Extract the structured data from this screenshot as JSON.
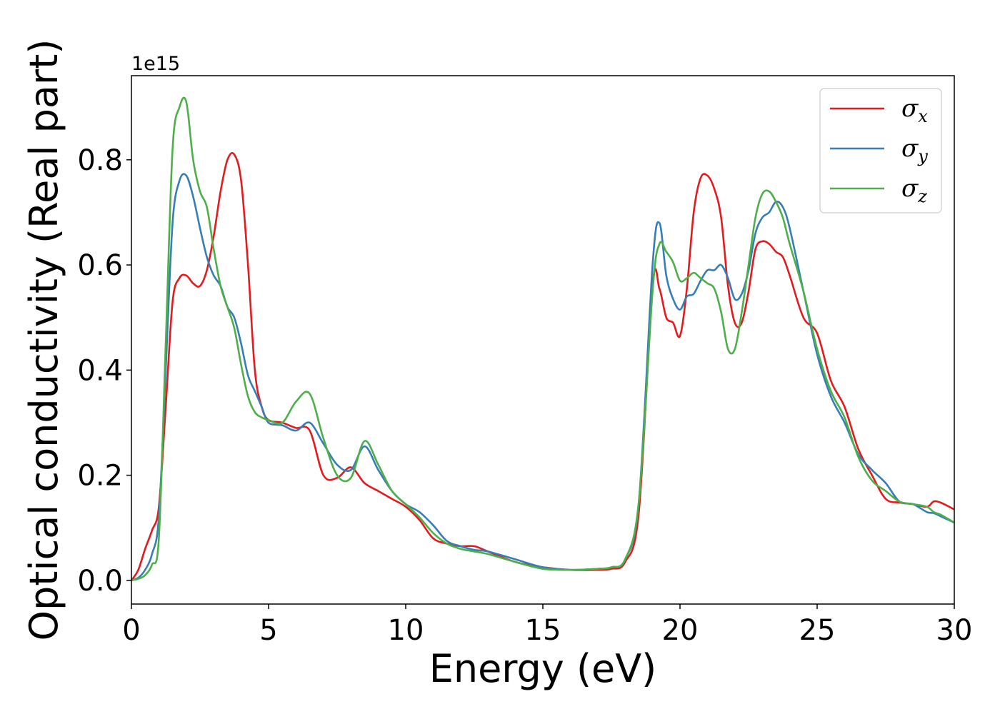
{
  "chart_data": {
    "type": "line",
    "title": "",
    "xlabel": "Energy (eV)",
    "ylabel": "Optical conductivity (Real part)",
    "y_offset_label": "1e15",
    "xlim": [
      0,
      30
    ],
    "ylim": [
      -0.045,
      0.96
    ],
    "x_ticks": [
      0,
      5,
      10,
      15,
      20,
      25,
      30
    ],
    "x_tick_labels": [
      "0",
      "5",
      "10",
      "15",
      "20",
      "25",
      "30"
    ],
    "y_ticks": [
      0.0,
      0.2,
      0.4,
      0.6,
      0.8
    ],
    "y_tick_labels": [
      "0.0",
      "0.2",
      "0.4",
      "0.6",
      "0.8"
    ],
    "grid": false,
    "legend_position": "top-right",
    "series": [
      {
        "name": "σx",
        "legend_symbol": "σ",
        "legend_subscript": "x",
        "color": "#e41a1c",
        "x": [
          0,
          0.25,
          0.5,
          0.75,
          1,
          1.25,
          1.5,
          1.75,
          2,
          2.25,
          2.5,
          2.75,
          3,
          3.25,
          3.5,
          3.75,
          4,
          4.25,
          4.5,
          4.75,
          5,
          5.5,
          6,
          6.5,
          7,
          7.5,
          8,
          8.5,
          9,
          9.5,
          10,
          10.5,
          11,
          11.5,
          12,
          12.5,
          13,
          14,
          15,
          16,
          17,
          17.5,
          18,
          18.5,
          19,
          19.25,
          19.5,
          19.75,
          20,
          20.25,
          20.5,
          20.75,
          21,
          21.25,
          21.5,
          21.75,
          22,
          22.25,
          22.5,
          22.75,
          23,
          23.25,
          23.5,
          23.75,
          24,
          24.5,
          25,
          25.5,
          26,
          26.5,
          27,
          27.5,
          28,
          28.5,
          29,
          29.25,
          29.5,
          30
        ],
        "y": [
          0,
          0.02,
          0.06,
          0.095,
          0.14,
          0.33,
          0.53,
          0.575,
          0.58,
          0.565,
          0.56,
          0.59,
          0.655,
          0.74,
          0.8,
          0.81,
          0.76,
          0.6,
          0.4,
          0.33,
          0.305,
          0.3,
          0.29,
          0.285,
          0.2,
          0.195,
          0.215,
          0.185,
          0.17,
          0.155,
          0.14,
          0.115,
          0.08,
          0.07,
          0.065,
          0.065,
          0.055,
          0.035,
          0.025,
          0.02,
          0.02,
          0.022,
          0.035,
          0.13,
          0.56,
          0.555,
          0.5,
          0.49,
          0.465,
          0.555,
          0.7,
          0.765,
          0.77,
          0.745,
          0.69,
          0.56,
          0.49,
          0.49,
          0.55,
          0.63,
          0.645,
          0.64,
          0.625,
          0.615,
          0.58,
          0.5,
          0.47,
          0.38,
          0.33,
          0.25,
          0.2,
          0.155,
          0.148,
          0.145,
          0.14,
          0.15,
          0.148,
          0.135
        ]
      },
      {
        "name": "σy",
        "legend_symbol": "σ",
        "legend_subscript": "y",
        "color": "#377eb8",
        "x": [
          0,
          0.25,
          0.5,
          0.75,
          1,
          1.25,
          1.5,
          1.75,
          2,
          2.25,
          2.5,
          2.75,
          3,
          3.25,
          3.5,
          3.75,
          4,
          4.25,
          4.5,
          4.75,
          5,
          5.5,
          6,
          6.5,
          7,
          7.5,
          8,
          8.5,
          9,
          9.5,
          10,
          10.5,
          11,
          11.5,
          12,
          12.5,
          13,
          14,
          15,
          16,
          17,
          17.5,
          18,
          18.5,
          19,
          19.25,
          19.5,
          19.75,
          20,
          20.25,
          20.5,
          20.75,
          21,
          21.25,
          21.5,
          21.75,
          22,
          22.25,
          22.5,
          22.75,
          23,
          23.25,
          23.5,
          23.75,
          24,
          24.5,
          25,
          25.5,
          26,
          26.5,
          27,
          27.5,
          28,
          28.5,
          29,
          29.25,
          29.5,
          30
        ],
        "y": [
          0,
          0.005,
          0.02,
          0.05,
          0.12,
          0.4,
          0.68,
          0.76,
          0.77,
          0.73,
          0.67,
          0.615,
          0.58,
          0.56,
          0.52,
          0.5,
          0.45,
          0.39,
          0.36,
          0.33,
          0.3,
          0.295,
          0.285,
          0.3,
          0.26,
          0.22,
          0.21,
          0.255,
          0.21,
          0.17,
          0.145,
          0.13,
          0.105,
          0.075,
          0.065,
          0.058,
          0.055,
          0.04,
          0.025,
          0.02,
          0.022,
          0.025,
          0.04,
          0.15,
          0.6,
          0.68,
          0.58,
          0.535,
          0.515,
          0.54,
          0.545,
          0.57,
          0.59,
          0.59,
          0.6,
          0.575,
          0.535,
          0.545,
          0.59,
          0.66,
          0.69,
          0.7,
          0.72,
          0.71,
          0.67,
          0.55,
          0.43,
          0.35,
          0.3,
          0.24,
          0.21,
          0.185,
          0.15,
          0.145,
          0.13,
          0.128,
          0.122,
          0.11
        ]
      },
      {
        "name": "σz",
        "legend_symbol": "σ",
        "legend_subscript": "z",
        "color": "#4daf4a",
        "x": [
          0,
          0.25,
          0.5,
          0.75,
          1,
          1.25,
          1.5,
          1.75,
          2,
          2.25,
          2.5,
          2.75,
          3,
          3.25,
          3.5,
          3.75,
          4,
          4.25,
          4.5,
          4.75,
          5,
          5.5,
          6,
          6.5,
          7,
          7.5,
          8,
          8.5,
          9,
          9.5,
          10,
          10.5,
          11,
          11.5,
          12,
          12.5,
          13,
          14,
          15,
          16,
          17,
          17.5,
          18,
          18.5,
          19,
          19.25,
          19.5,
          19.75,
          20,
          20.25,
          20.5,
          20.75,
          21,
          21.25,
          21.5,
          21.75,
          22,
          22.25,
          22.5,
          22.75,
          23,
          23.25,
          23.5,
          23.75,
          24,
          24.5,
          25,
          25.5,
          26,
          26.5,
          27,
          27.5,
          28,
          28.5,
          29,
          29.25,
          29.5,
          30
        ],
        "y": [
          0,
          0.003,
          0.01,
          0.03,
          0.08,
          0.45,
          0.82,
          0.9,
          0.91,
          0.8,
          0.74,
          0.71,
          0.63,
          0.56,
          0.52,
          0.48,
          0.41,
          0.35,
          0.32,
          0.31,
          0.305,
          0.3,
          0.34,
          0.355,
          0.27,
          0.2,
          0.195,
          0.265,
          0.22,
          0.17,
          0.145,
          0.12,
          0.09,
          0.07,
          0.06,
          0.055,
          0.05,
          0.035,
          0.022,
          0.02,
          0.022,
          0.025,
          0.04,
          0.15,
          0.55,
          0.64,
          0.625,
          0.605,
          0.57,
          0.575,
          0.585,
          0.575,
          0.565,
          0.555,
          0.51,
          0.44,
          0.44,
          0.51,
          0.6,
          0.69,
          0.735,
          0.74,
          0.72,
          0.69,
          0.64,
          0.55,
          0.44,
          0.36,
          0.31,
          0.235,
          0.19,
          0.17,
          0.15,
          0.145,
          0.14,
          0.13,
          0.125,
          0.11
        ]
      }
    ]
  }
}
